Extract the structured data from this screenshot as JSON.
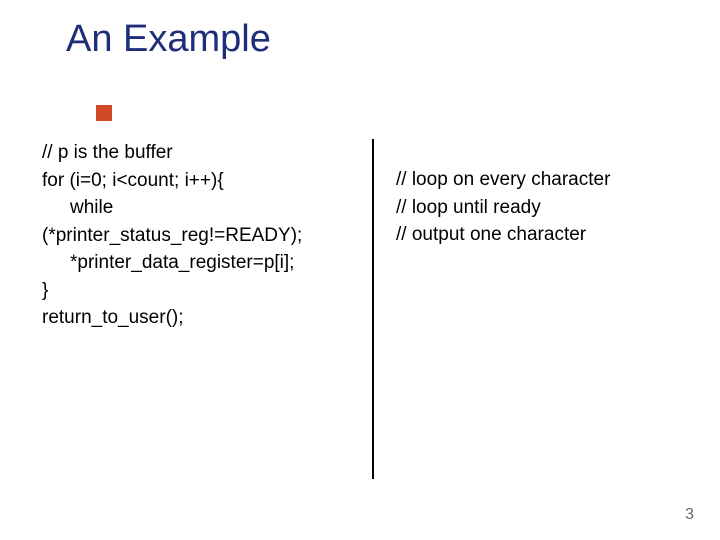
{
  "title": "An Example",
  "title_color": "#1f2e79",
  "title_fontsize": 38,
  "accent_color": "#d04a28",
  "text_color": "#000000",
  "divider_color": "#000000",
  "background_color": "#ffffff",
  "body_fontsize": 19,
  "page_number": "3",
  "code": {
    "lines": [
      {
        "text": "// p is the buffer",
        "indent": false
      },
      {
        "text": "for (i=0; i<count; i++){",
        "indent": false
      },
      {
        "text": "while",
        "indent": true
      },
      {
        "text": "(*printer_status_reg!=READY);",
        "indent": false
      },
      {
        "text": "*printer_data_register=p[i];",
        "indent": true
      },
      {
        "text": "}",
        "indent": false
      },
      {
        "text": "return_to_user();",
        "indent": false
      }
    ]
  },
  "comments": {
    "lines": [
      "// loop on every character",
      "// loop until ready",
      "// output one character"
    ]
  }
}
